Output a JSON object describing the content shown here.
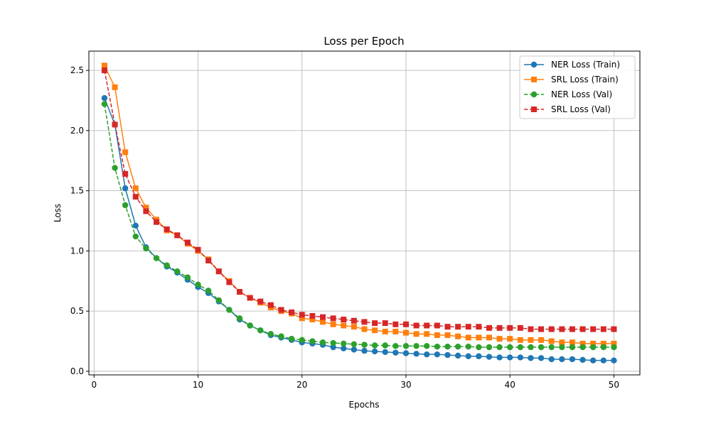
{
  "chart_data": {
    "type": "line",
    "title": "Loss per Epoch",
    "xlabel": "Epochs",
    "ylabel": "Loss",
    "xlim": [
      -0.5,
      52.5
    ],
    "ylim": [
      -0.03,
      2.66
    ],
    "xticks": [
      0,
      10,
      20,
      30,
      40,
      50
    ],
    "yticks": [
      0.0,
      0.5,
      1.0,
      1.5,
      2.0,
      2.5
    ],
    "grid": true,
    "legend_position": "top-right",
    "x": [
      1,
      2,
      3,
      4,
      5,
      6,
      7,
      8,
      9,
      10,
      11,
      12,
      13,
      14,
      15,
      16,
      17,
      18,
      19,
      20,
      21,
      22,
      23,
      24,
      25,
      26,
      27,
      28,
      29,
      30,
      31,
      32,
      33,
      34,
      35,
      36,
      37,
      38,
      39,
      40,
      41,
      42,
      43,
      44,
      45,
      46,
      47,
      48,
      49,
      50
    ],
    "series": [
      {
        "name": "NER Loss (Train)",
        "color": "#1f77b4",
        "marker": "circle",
        "linestyle": "solid",
        "values": [
          2.27,
          2.05,
          1.52,
          1.21,
          1.03,
          0.94,
          0.87,
          0.82,
          0.76,
          0.7,
          0.65,
          0.58,
          0.51,
          0.43,
          0.38,
          0.34,
          0.3,
          0.28,
          0.26,
          0.24,
          0.23,
          0.22,
          0.2,
          0.19,
          0.18,
          0.17,
          0.165,
          0.16,
          0.155,
          0.15,
          0.145,
          0.14,
          0.14,
          0.135,
          0.13,
          0.125,
          0.125,
          0.12,
          0.115,
          0.115,
          0.115,
          0.11,
          0.11,
          0.1,
          0.1,
          0.1,
          0.095,
          0.09,
          0.09,
          0.09
        ]
      },
      {
        "name": "SRL Loss (Train)",
        "color": "#ff7f0e",
        "marker": "square",
        "linestyle": "solid",
        "values": [
          2.54,
          2.36,
          1.82,
          1.52,
          1.36,
          1.26,
          1.17,
          1.13,
          1.06,
          1.0,
          0.93,
          0.83,
          0.75,
          0.66,
          0.61,
          0.57,
          0.53,
          0.5,
          0.48,
          0.44,
          0.43,
          0.41,
          0.39,
          0.38,
          0.37,
          0.35,
          0.34,
          0.33,
          0.33,
          0.32,
          0.31,
          0.31,
          0.3,
          0.3,
          0.29,
          0.28,
          0.28,
          0.28,
          0.27,
          0.27,
          0.26,
          0.26,
          0.26,
          0.25,
          0.24,
          0.24,
          0.23,
          0.23,
          0.23,
          0.23
        ]
      },
      {
        "name": "NER Loss (Val)",
        "color": "#2ca02c",
        "marker": "circle",
        "linestyle": "dashed",
        "values": [
          2.22,
          1.69,
          1.38,
          1.12,
          1.02,
          0.94,
          0.88,
          0.83,
          0.78,
          0.72,
          0.67,
          0.59,
          0.51,
          0.44,
          0.38,
          0.34,
          0.31,
          0.29,
          0.27,
          0.26,
          0.25,
          0.24,
          0.235,
          0.23,
          0.225,
          0.22,
          0.215,
          0.215,
          0.21,
          0.21,
          0.21,
          0.21,
          0.205,
          0.205,
          0.205,
          0.205,
          0.2,
          0.2,
          0.2,
          0.2,
          0.2,
          0.2,
          0.2,
          0.2,
          0.2,
          0.2,
          0.2,
          0.2,
          0.2,
          0.2
        ]
      },
      {
        "name": "SRL Loss (Val)",
        "color": "#d62728",
        "marker": "square",
        "linestyle": "dashed",
        "values": [
          2.5,
          2.05,
          1.64,
          1.45,
          1.33,
          1.24,
          1.18,
          1.13,
          1.07,
          1.01,
          0.92,
          0.83,
          0.74,
          0.66,
          0.61,
          0.58,
          0.55,
          0.51,
          0.49,
          0.47,
          0.46,
          0.45,
          0.44,
          0.43,
          0.42,
          0.41,
          0.4,
          0.4,
          0.39,
          0.39,
          0.38,
          0.38,
          0.38,
          0.37,
          0.37,
          0.37,
          0.37,
          0.36,
          0.36,
          0.36,
          0.36,
          0.35,
          0.35,
          0.35,
          0.35,
          0.35,
          0.35,
          0.35,
          0.35,
          0.35
        ]
      }
    ]
  }
}
